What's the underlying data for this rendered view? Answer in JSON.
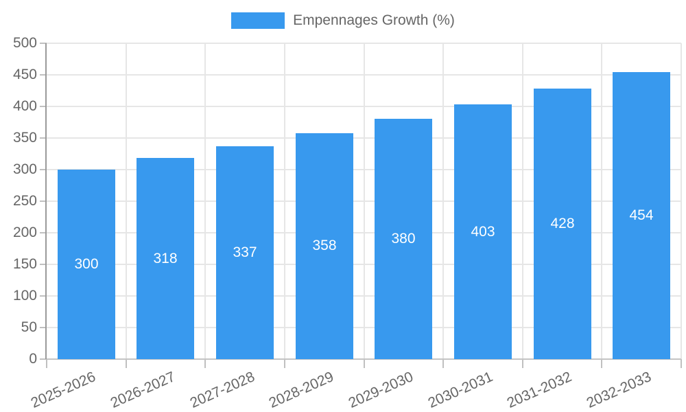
{
  "legend": {
    "label": "Empennages Growth (%)"
  },
  "colors": {
    "bar": "#3899ee",
    "grid": "#e6e6e6",
    "y_axis_line": "#9a9a9a",
    "x_axis_line": "#c4c4c4",
    "tick": "#c0c0c0",
    "axis_label": "#666666",
    "bar_label": "#ffffff"
  },
  "chart_data": {
    "type": "bar",
    "title": "",
    "xlabel": "",
    "ylabel": "",
    "categories": [
      "2025-2026",
      "2026-2027",
      "2027-2028",
      "2028-2029",
      "2029-2030",
      "2030-2031",
      "2031-2032",
      "2032-2033"
    ],
    "series": [
      {
        "name": "Empennages Growth (%)",
        "values": [
          300,
          318,
          337,
          358,
          380,
          403,
          428,
          454
        ]
      }
    ],
    "bar_labels": [
      300,
      318,
      337,
      358,
      380,
      403,
      428,
      454
    ],
    "ylim": [
      0,
      500
    ],
    "yticks": [
      0,
      50,
      100,
      150,
      200,
      250,
      300,
      350,
      400,
      450,
      500
    ],
    "grid": true,
    "legend_position": "top"
  }
}
